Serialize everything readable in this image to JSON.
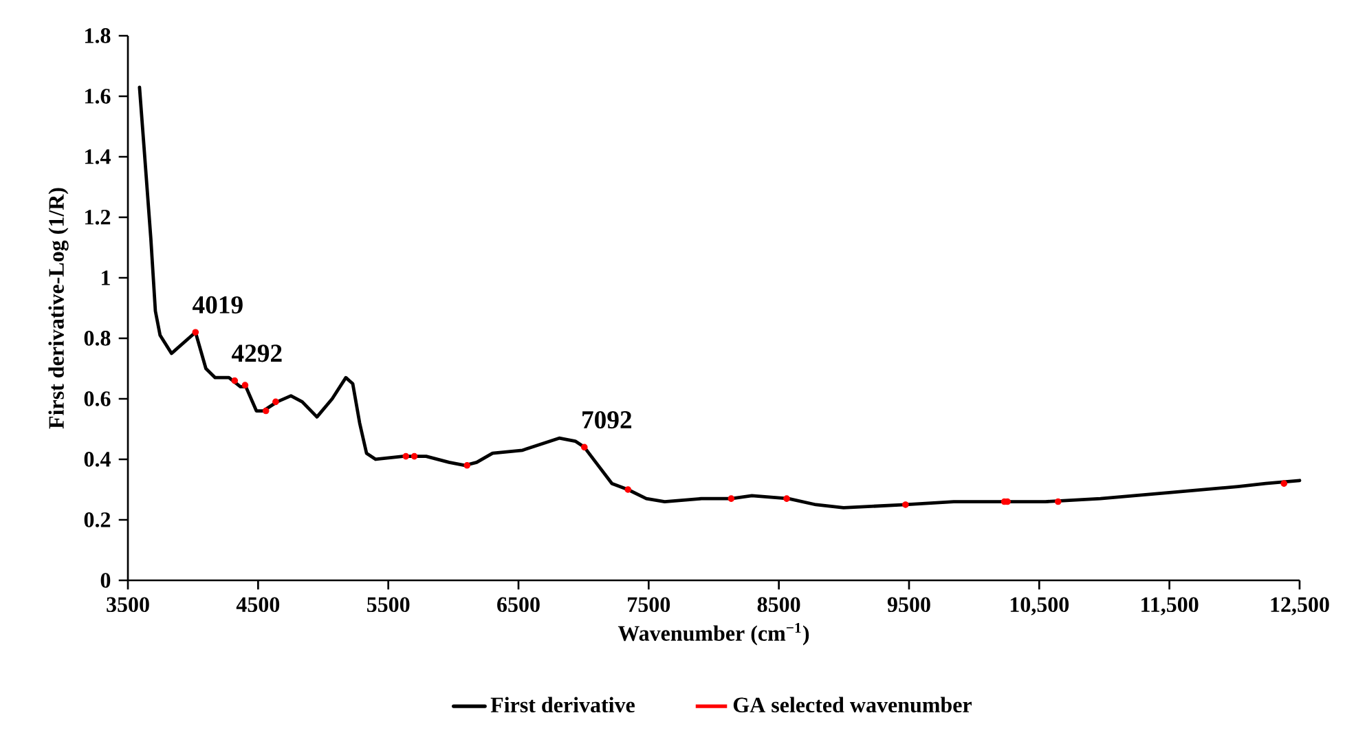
{
  "chart_data": {
    "type": "line",
    "xlabel": "Wavenumber (cm$^{−1}$)",
    "ylabel": "First derivative-Log (1/R)",
    "xlim": [
      3500,
      12500
    ],
    "ylim": [
      0,
      1.8
    ],
    "xticks": [
      3500,
      4500,
      5500,
      6500,
      7500,
      8500,
      9500,
      {
        "value": 10500,
        "label": "10,500"
      },
      {
        "value": 11500,
        "label": "11,500"
      },
      {
        "value": 12500,
        "label": "12,500"
      }
    ],
    "yticks": [
      0,
      0.2,
      0.4,
      0.6,
      0.8,
      1,
      1.2,
      1.4,
      1.6,
      1.8
    ],
    "grid": false,
    "legend": "bottom",
    "line_style": "solid",
    "series": [
      {
        "name": "First derivative",
        "color": "#000000",
        "x": [
          3589,
          3624,
          3676,
          3711,
          3747,
          3835,
          4019,
          4099,
          4170,
          4276,
          4364,
          4406,
          4487,
          4540,
          4646,
          4752,
          4839,
          4952,
          5069,
          5174,
          5227,
          5280,
          5333,
          5403,
          5614,
          5685,
          5791,
          5967,
          6090,
          6179,
          6301,
          6531,
          6813,
          6936,
          7006,
          7094,
          7218,
          7341,
          7482,
          7623,
          7905,
          8134,
          8293,
          8574,
          8785,
          8997,
          9473,
          9843,
          10196,
          10548,
          10970,
          11499,
          12027,
          12239,
          12500
        ],
        "values": [
          1.63,
          1.43,
          1.13,
          0.89,
          0.81,
          0.75,
          0.82,
          0.7,
          0.67,
          0.67,
          0.64,
          0.64,
          0.56,
          0.56,
          0.59,
          0.61,
          0.59,
          0.54,
          0.6,
          0.67,
          0.65,
          0.52,
          0.42,
          0.4,
          0.41,
          0.41,
          0.41,
          0.39,
          0.38,
          0.39,
          0.42,
          0.43,
          0.47,
          0.46,
          0.44,
          0.39,
          0.32,
          0.3,
          0.27,
          0.26,
          0.27,
          0.27,
          0.28,
          0.27,
          0.25,
          0.24,
          0.25,
          0.26,
          0.26,
          0.26,
          0.27,
          0.29,
          0.31,
          0.32,
          0.33
        ]
      },
      {
        "name": "GA selected wavenumber",
        "type": "scatter",
        "color": "#ff0000",
        "x": [
          4019,
          4320,
          4400,
          4560,
          4635,
          5635,
          5700,
          6105,
          7006,
          7341,
          8134,
          8560,
          9473,
          10232,
          10256,
          10645,
          12380
        ],
        "values": [
          0.82,
          0.66,
          0.645,
          0.56,
          0.59,
          0.41,
          0.41,
          0.38,
          0.44,
          0.3,
          0.27,
          0.27,
          0.25,
          0.26,
          0.26,
          0.26,
          0.32
        ]
      }
    ],
    "annotations": [
      {
        "text": "4019",
        "x": 4019,
        "y": 0.82
      },
      {
        "text": "4292",
        "x": 4320,
        "y": 0.66
      },
      {
        "text": "7092",
        "x": 7006,
        "y": 0.44
      }
    ]
  }
}
